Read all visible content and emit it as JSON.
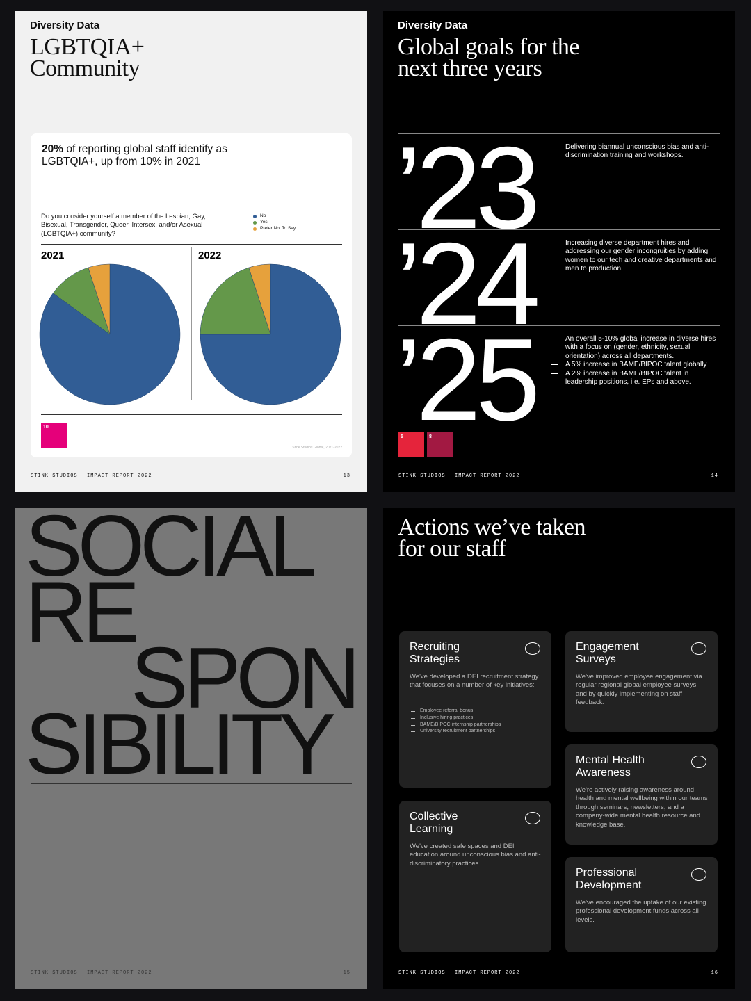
{
  "pages": [
    {
      "section": "Diversity Data",
      "title": [
        "LGBTQIA+",
        "Community"
      ],
      "headline_bold": "20%",
      "headline_rest": " of reporting global staff identify as LGBTQIA+, up from 10% in 2021",
      "question": "Do you consider yourself a member of the Lesbian, Gay, Bisexual, Transgender, Queer, Intersex, and/or Asexual (LGBTQIA+) community?",
      "badge": "10",
      "source": "Stink Studios Global, 2021-2022",
      "footer": {
        "brand": "STINK STUDIOS",
        "report": "IMPACT REPORT 2022",
        "page": "13"
      }
    },
    {
      "section": "Diversity Data",
      "title": [
        "Global goals for the",
        "next three years"
      ],
      "goals": [
        {
          "year": "’23",
          "items": [
            "Delivering biannual unconscious bias and anti-discrimination training and workshops."
          ]
        },
        {
          "year": "’24",
          "items": [
            "Increasing diverse department hires and addressing our gender incongruities by adding women to our tech and creative departments and men to production."
          ]
        },
        {
          "year": "’25",
          "items": [
            "An overall 5-10% global increase in diverse hires with a focus on (gender, ethnicity, sexual orientation) across all departments.",
            "A 5% increase in BAME/BIPOC talent globally",
            "A 2% increase in BAME/BIPOC talent in leadership positions, i.e. EPs and above."
          ]
        }
      ],
      "badges": [
        "5",
        "8"
      ],
      "footer": {
        "brand": "STINK STUDIOS",
        "report": "IMPACT REPORT 2022",
        "page": "14"
      }
    },
    {
      "words": [
        "SOCIAL",
        "RE",
        "SPON",
        "SIBILITY"
      ],
      "footer": {
        "brand": "STINK STUDIOS",
        "report": "IMPACT REPORT 2022",
        "page": "15"
      }
    },
    {
      "title": [
        "Actions we’ve taken",
        "for our staff"
      ],
      "cards": [
        {
          "title": [
            "Recruiting",
            "Strategies"
          ],
          "body": "We've developed a DEI recruitment strategy that focuses on a number of key initiatives:",
          "items": [
            "Employee referral bonus",
            "Inclusive hiring practices",
            "BAME/BIPOC internship partnerships",
            "University recruitment partnerships"
          ]
        },
        {
          "title": [
            "Engagement",
            "Surveys"
          ],
          "body": "We've improved employee engagement via regular regional global employee surveys and by quickly implementing on staff feedback."
        },
        {
          "title": [
            "Mental Health",
            "Awareness"
          ],
          "body": "We're actively raising awareness around health and mental wellbeing within our teams through seminars, newsletters, and a company-wide mental health resource and knowledge base."
        },
        {
          "title": [
            "Collective",
            "Learning"
          ],
          "body": "We've created safe spaces and DEI education around unconscious bias and anti-discriminatory practices."
        },
        {
          "title": [
            "Professional",
            "Development"
          ],
          "body": "We've encouraged the uptake of our existing professional development funds across all levels."
        }
      ],
      "footer": {
        "brand": "STINK STUDIOS",
        "report": "IMPACT REPORT 2022",
        "page": "16"
      }
    }
  ],
  "chart_data": {
    "type": "pie",
    "categories": [
      "No",
      "Yes",
      "Prefer Not To Say"
    ],
    "colors": [
      "#315d95",
      "#64984a",
      "#e6a13c"
    ],
    "series": [
      {
        "name": "2021",
        "values": [
          85,
          10,
          5
        ]
      },
      {
        "name": "2022",
        "values": [
          75,
          20,
          5
        ]
      }
    ]
  }
}
